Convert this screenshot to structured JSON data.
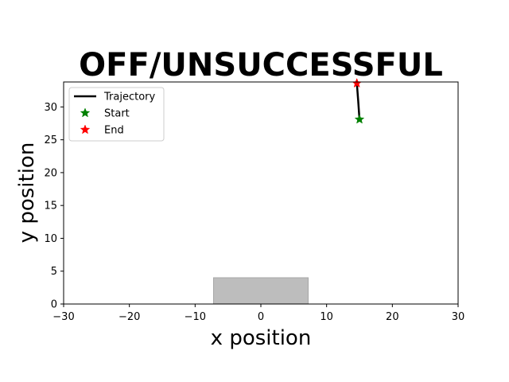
{
  "chart_data": {
    "type": "line",
    "title": "OFF/UNSUCCESSFUL",
    "xlabel": "x position",
    "ylabel": "y position",
    "xlim": [
      -30,
      30
    ],
    "ylim": [
      0,
      33.8
    ],
    "xticks": [
      -30,
      -20,
      -10,
      0,
      10,
      20,
      30
    ],
    "yticks": [
      0,
      5,
      10,
      15,
      20,
      25,
      30
    ],
    "xtick_labels": [
      "−30",
      "−20",
      "−10",
      "0",
      "10",
      "20",
      "30"
    ],
    "ytick_labels": [
      "0",
      "5",
      "10",
      "15",
      "20",
      "25",
      "30"
    ],
    "grid": false,
    "legend_position": "upper-left",
    "region": {
      "x": [
        -7.2,
        7.2
      ],
      "y": [
        0,
        4
      ],
      "color": "#bdbdbd"
    },
    "series": [
      {
        "name": "Trajectory",
        "color": "#000000",
        "x": [
          15.0,
          14.8,
          14.6
        ],
        "y": [
          28.1,
          31.0,
          33.6
        ]
      }
    ],
    "markers": [
      {
        "name": "Start",
        "color": "#008000",
        "x": 15.0,
        "y": 28.1
      },
      {
        "name": "End",
        "color": "#ff0000",
        "x": 14.6,
        "y": 33.6
      }
    ]
  }
}
